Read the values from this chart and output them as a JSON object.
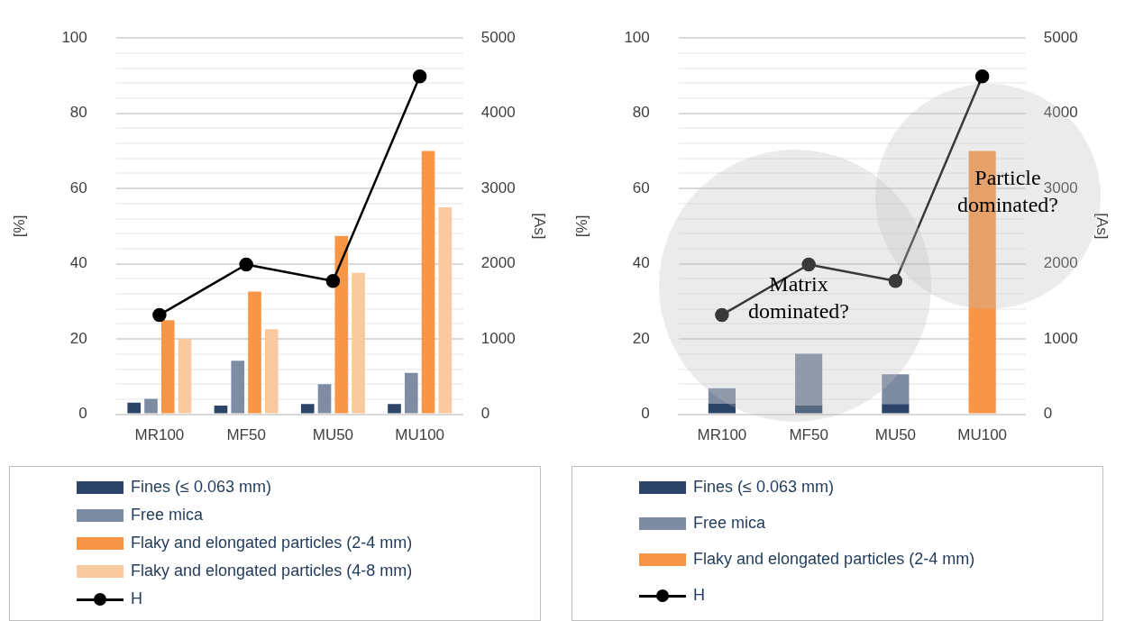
{
  "chart_data": [
    {
      "type": "bar",
      "ylabel": "[%]",
      "y2label": "[As]",
      "categories": [
        "MR100",
        "MF50",
        "MU50",
        "MU100"
      ],
      "series": [
        {
          "name": "Fines (≤ 0.063 mm)",
          "color": "#2b4468",
          "values": [
            3.1,
            2.3,
            2.7,
            2.7
          ]
        },
        {
          "name": "Free mica",
          "color": "#7d8ca3",
          "values": [
            4.1,
            14.2,
            8.0,
            11.0
          ]
        },
        {
          "name": "Flaky and elongated particles (2-4 mm)",
          "color": "#f79646",
          "values": [
            25,
            32.6,
            47.4,
            70
          ]
        },
        {
          "name": "Flaky and elongated particles (4-8 mm)",
          "color": "#f9c9a0",
          "values": [
            20,
            22.6,
            37.6,
            55
          ]
        },
        {
          "name": "H",
          "type": "line",
          "axis": "y2",
          "color": "#000000",
          "values": [
            1320,
            1990,
            1770,
            4490
          ]
        }
      ],
      "ylim": [
        0,
        100
      ],
      "yticks": [
        0,
        {
          "value": 4,
          "label": null
        },
        {
          "value": 8,
          "label": null
        },
        {
          "value": 12,
          "label": null
        },
        {
          "value": 16,
          "label": null
        },
        20,
        {
          "value": 24,
          "label": null
        },
        {
          "value": 28,
          "label": null
        },
        {
          "value": 32,
          "label": null
        },
        {
          "value": 36,
          "label": null
        },
        40,
        {
          "value": 44,
          "label": null
        },
        {
          "value": 48,
          "label": null
        },
        {
          "value": 52,
          "label": null
        },
        {
          "value": 56,
          "label": null
        },
        60,
        {
          "value": 64,
          "label": null
        },
        {
          "value": 68,
          "label": null
        },
        {
          "value": 72,
          "label": null
        },
        {
          "value": 76,
          "label": null
        },
        80,
        {
          "value": 84,
          "label": null
        },
        {
          "value": 88,
          "label": null
        },
        {
          "value": 92,
          "label": null
        },
        {
          "value": 96,
          "label": null
        },
        100
      ],
      "y2lim": [
        0,
        5000
      ],
      "y2ticks": [
        0,
        1000,
        2000,
        3000,
        4000,
        5000
      ],
      "grid": "y",
      "legend": "bottom",
      "marker": "circle"
    },
    {
      "type": "bar",
      "stacked": true,
      "ylabel": "[%]",
      "y2label": "[As]",
      "categories": [
        "MR100",
        "MF50",
        "MU50",
        "MU100"
      ],
      "series": [
        {
          "name": "Fines (≤ 0.063 mm)",
          "color": "#2b4468",
          "values": [
            2.8,
            2.3,
            2.7,
            null
          ]
        },
        {
          "name": "Free mica",
          "color": "#7d8ca3",
          "values": [
            4.1,
            13.8,
            7.9,
            null
          ]
        },
        {
          "name": "Flaky and elongated particles (2-4 mm)",
          "color": "#f79646",
          "values": [
            null,
            null,
            null,
            70
          ]
        },
        {
          "name": "H",
          "type": "line",
          "axis": "y2",
          "color": "#000000",
          "values": [
            1320,
            1990,
            1770,
            4490
          ]
        }
      ],
      "ylim": [
        0,
        100
      ],
      "yticks": [
        0,
        {
          "value": 4,
          "label": null
        },
        {
          "value": 8,
          "label": null
        },
        {
          "value": 12,
          "label": null
        },
        {
          "value": 16,
          "label": null
        },
        20,
        {
          "value": 24,
          "label": null
        },
        {
          "value": 28,
          "label": null
        },
        {
          "value": 32,
          "label": null
        },
        {
          "value": 36,
          "label": null
        },
        40,
        {
          "value": 44,
          "label": null
        },
        {
          "value": 48,
          "label": null
        },
        {
          "value": 52,
          "label": null
        },
        {
          "value": 56,
          "label": null
        },
        60,
        {
          "value": 64,
          "label": null
        },
        {
          "value": 68,
          "label": null
        },
        {
          "value": 72,
          "label": null
        },
        {
          "value": 76,
          "label": null
        },
        80,
        {
          "value": 84,
          "label": null
        },
        {
          "value": 88,
          "label": null
        },
        {
          "value": 92,
          "label": null
        },
        {
          "value": 96,
          "label": null
        },
        100
      ],
      "y2lim": [
        0,
        5000
      ],
      "y2ticks": [
        0,
        1000,
        2000,
        3000,
        4000,
        5000
      ],
      "grid": "y",
      "legend": "bottom",
      "marker": "circle",
      "annotations": [
        "Matrix dominated?",
        "Particle dominated?"
      ]
    }
  ]
}
